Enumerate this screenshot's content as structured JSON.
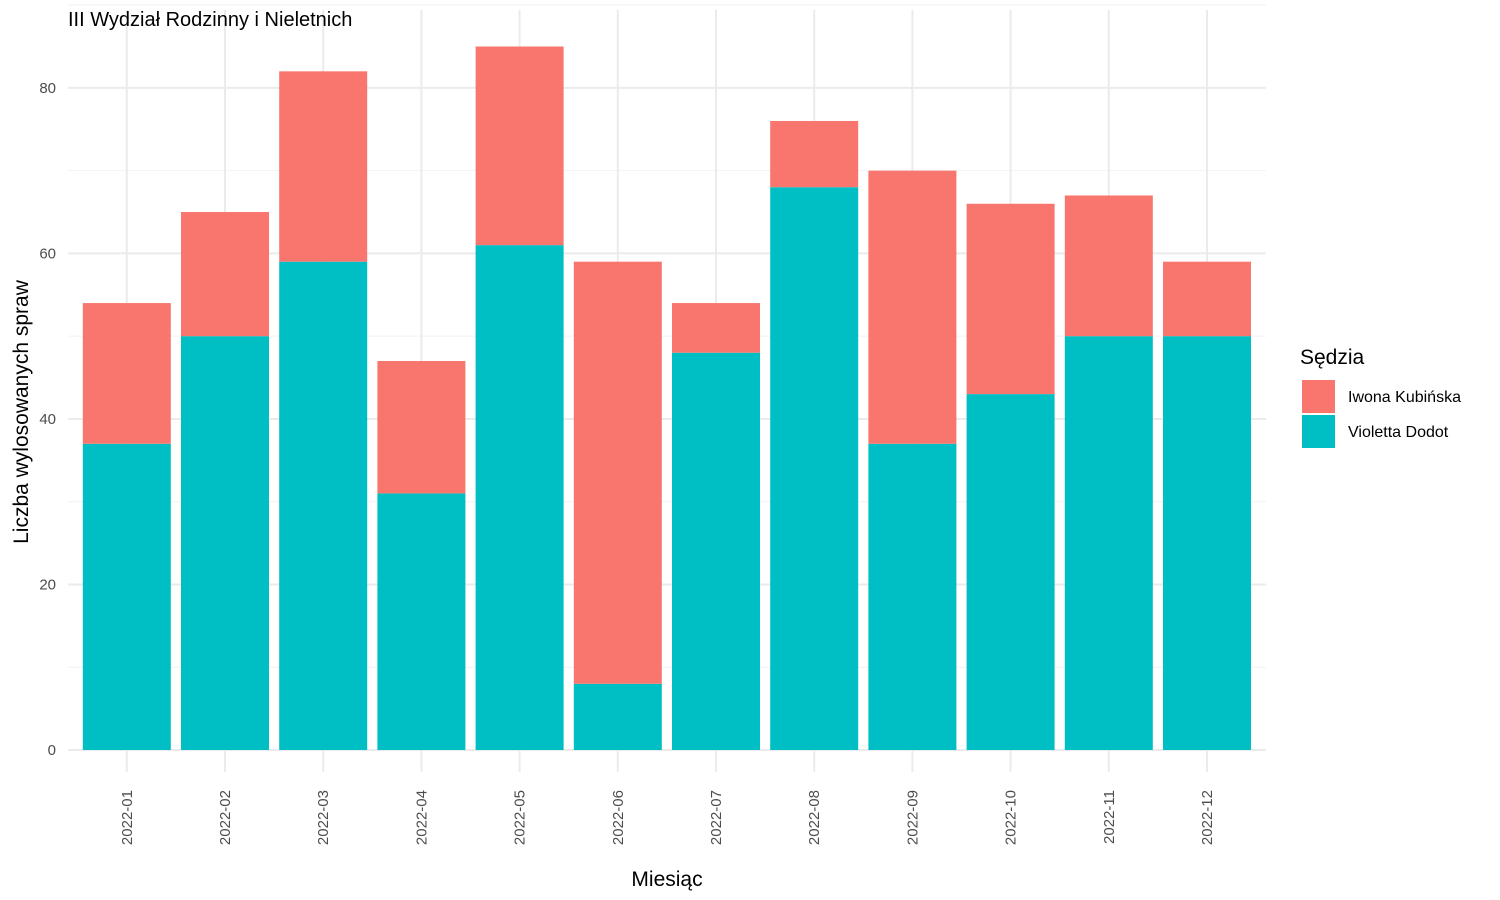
{
  "chart_data": {
    "type": "bar",
    "stacked": true,
    "title": "III Wydział Rodzinny i Nieletnich",
    "xlabel": "Miesiąc",
    "ylabel": "Liczba wylosowanych spraw",
    "categories": [
      "2022-01",
      "2022-02",
      "2022-03",
      "2022-04",
      "2022-05",
      "2022-06",
      "2022-07",
      "2022-08",
      "2022-09",
      "2022-10",
      "2022-11",
      "2022-12"
    ],
    "series": [
      {
        "name": "Violetta Dodot",
        "color": "#00BFC4",
        "values": [
          37,
          50,
          59,
          31,
          61,
          8,
          48,
          68,
          37,
          43,
          50,
          50
        ]
      },
      {
        "name": "Iwona Kubińska",
        "color": "#F8766D",
        "values": [
          17,
          15,
          23,
          16,
          24,
          51,
          6,
          8,
          33,
          23,
          17,
          9
        ]
      }
    ],
    "ylim": [
      0,
      85
    ],
    "yticks": [
      0,
      20,
      40,
      60,
      80
    ],
    "grid": true,
    "legend": {
      "title": "Sędzia",
      "position": "right",
      "entries": [
        {
          "name": "Iwona Kubińska",
          "color": "#F8766D"
        },
        {
          "name": "Violetta Dodot",
          "color": "#00BFC4"
        }
      ]
    }
  }
}
